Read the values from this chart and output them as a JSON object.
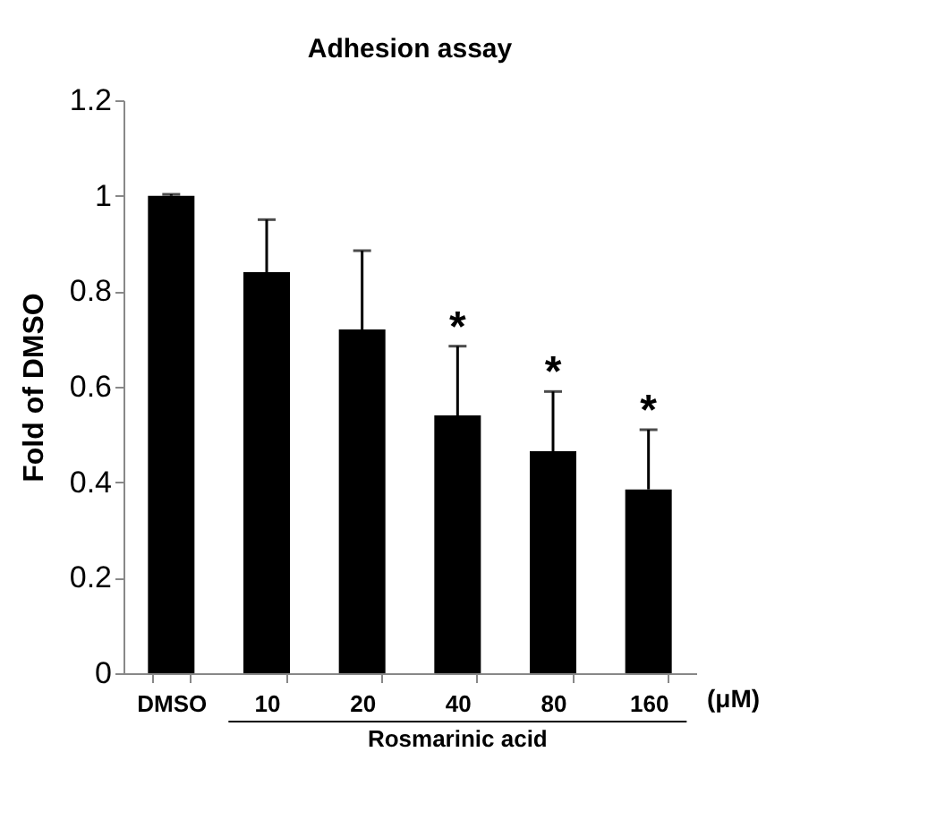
{
  "chart_data": {
    "type": "bar",
    "title": "Adhesion assay",
    "ylabel": "Fold of DMSO",
    "xlabel": "Rosmarinic acid",
    "categories": [
      "DMSO",
      "10",
      "20",
      "40",
      "80",
      "160"
    ],
    "values": [
      1.0,
      0.84,
      0.72,
      0.54,
      0.465,
      0.385
    ],
    "errors": [
      [
        1.0,
        1.003
      ],
      [
        0.84,
        0.95
      ],
      [
        0.72,
        0.885
      ],
      [
        0.54,
        0.685
      ],
      [
        0.465,
        0.59
      ],
      [
        0.385,
        0.51
      ]
    ],
    "color": "#000000",
    "ylim": [
      0,
      1.2
    ],
    "yticks": [
      0,
      0.2,
      0.4,
      0.6,
      0.8,
      1,
      1.2
    ],
    "grid": false,
    "value_labels": [
      null,
      null,
      null,
      "*",
      "*",
      "*"
    ],
    "annotations": [
      "(μM)"
    ]
  }
}
